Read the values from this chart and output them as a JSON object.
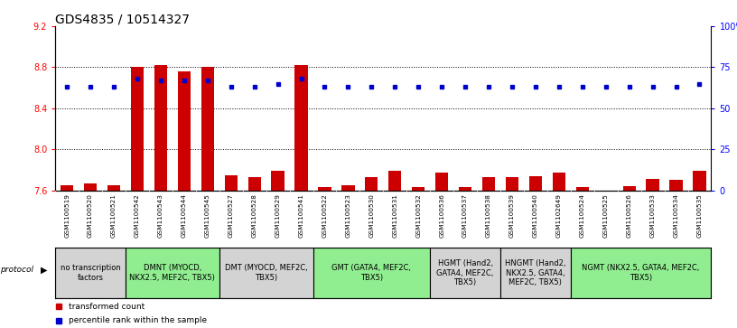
{
  "title": "GDS4835 / 10514327",
  "sample_ids": [
    "GSM1100519",
    "GSM1100520",
    "GSM1100521",
    "GSM1100542",
    "GSM1100543",
    "GSM1100544",
    "GSM1100545",
    "GSM1100527",
    "GSM1100528",
    "GSM1100529",
    "GSM1100541",
    "GSM1100522",
    "GSM1100523",
    "GSM1100530",
    "GSM1100531",
    "GSM1100532",
    "GSM1100536",
    "GSM1100537",
    "GSM1100538",
    "GSM1100539",
    "GSM1100540",
    "GSM1102649",
    "GSM1100524",
    "GSM1100525",
    "GSM1100526",
    "GSM1100533",
    "GSM1100534",
    "GSM1100535"
  ],
  "bar_values": [
    7.65,
    7.67,
    7.65,
    8.8,
    8.82,
    8.76,
    8.8,
    7.75,
    7.73,
    7.79,
    8.82,
    7.63,
    7.65,
    7.73,
    7.79,
    7.63,
    7.77,
    7.63,
    7.73,
    7.73,
    7.74,
    7.77,
    7.63,
    7.6,
    7.64,
    7.71,
    7.7,
    7.79
  ],
  "percentile_values": [
    63,
    63,
    63,
    68,
    67,
    67,
    67,
    63,
    63,
    65,
    68,
    63,
    63,
    63,
    63,
    63,
    63,
    63,
    63,
    63,
    63,
    63,
    63,
    63,
    63,
    63,
    63,
    65
  ],
  "ylim_left": [
    7.6,
    9.2
  ],
  "ylim_right": [
    0,
    100
  ],
  "yticks_left": [
    7.6,
    8.0,
    8.4,
    8.8,
    9.2
  ],
  "yticks_right": [
    0,
    25,
    50,
    75,
    100
  ],
  "bar_color": "#cc0000",
  "dot_color": "#0000cc",
  "bar_baseline": 7.6,
  "groups": [
    {
      "label": "no transcription\nfactors",
      "start": 0,
      "end": 3,
      "color": "#d3d3d3"
    },
    {
      "label": "DMNT (MYOCD,\nNKX2.5, MEF2C, TBX5)",
      "start": 3,
      "end": 7,
      "color": "#90ee90"
    },
    {
      "label": "DMT (MYOCD, MEF2C,\nTBX5)",
      "start": 7,
      "end": 11,
      "color": "#d3d3d3"
    },
    {
      "label": "GMT (GATA4, MEF2C,\nTBX5)",
      "start": 11,
      "end": 16,
      "color": "#90ee90"
    },
    {
      "label": "HGMT (Hand2,\nGATA4, MEF2C,\nTBX5)",
      "start": 16,
      "end": 19,
      "color": "#d3d3d3"
    },
    {
      "label": "HNGMT (Hand2,\nNKX2.5, GATA4,\nMEF2C, TBX5)",
      "start": 19,
      "end": 22,
      "color": "#d3d3d3"
    },
    {
      "label": "NGMT (NKX2.5, GATA4, MEF2C,\nTBX5)",
      "start": 22,
      "end": 28,
      "color": "#90ee90"
    }
  ],
  "legend_items": [
    {
      "label": "transformed count",
      "color": "#cc0000"
    },
    {
      "label": "percentile rank within the sample",
      "color": "#0000cc"
    }
  ],
  "title_fontsize": 10,
  "tick_fontsize": 7,
  "sample_fontsize": 5.2,
  "group_label_fontsize": 6.0
}
